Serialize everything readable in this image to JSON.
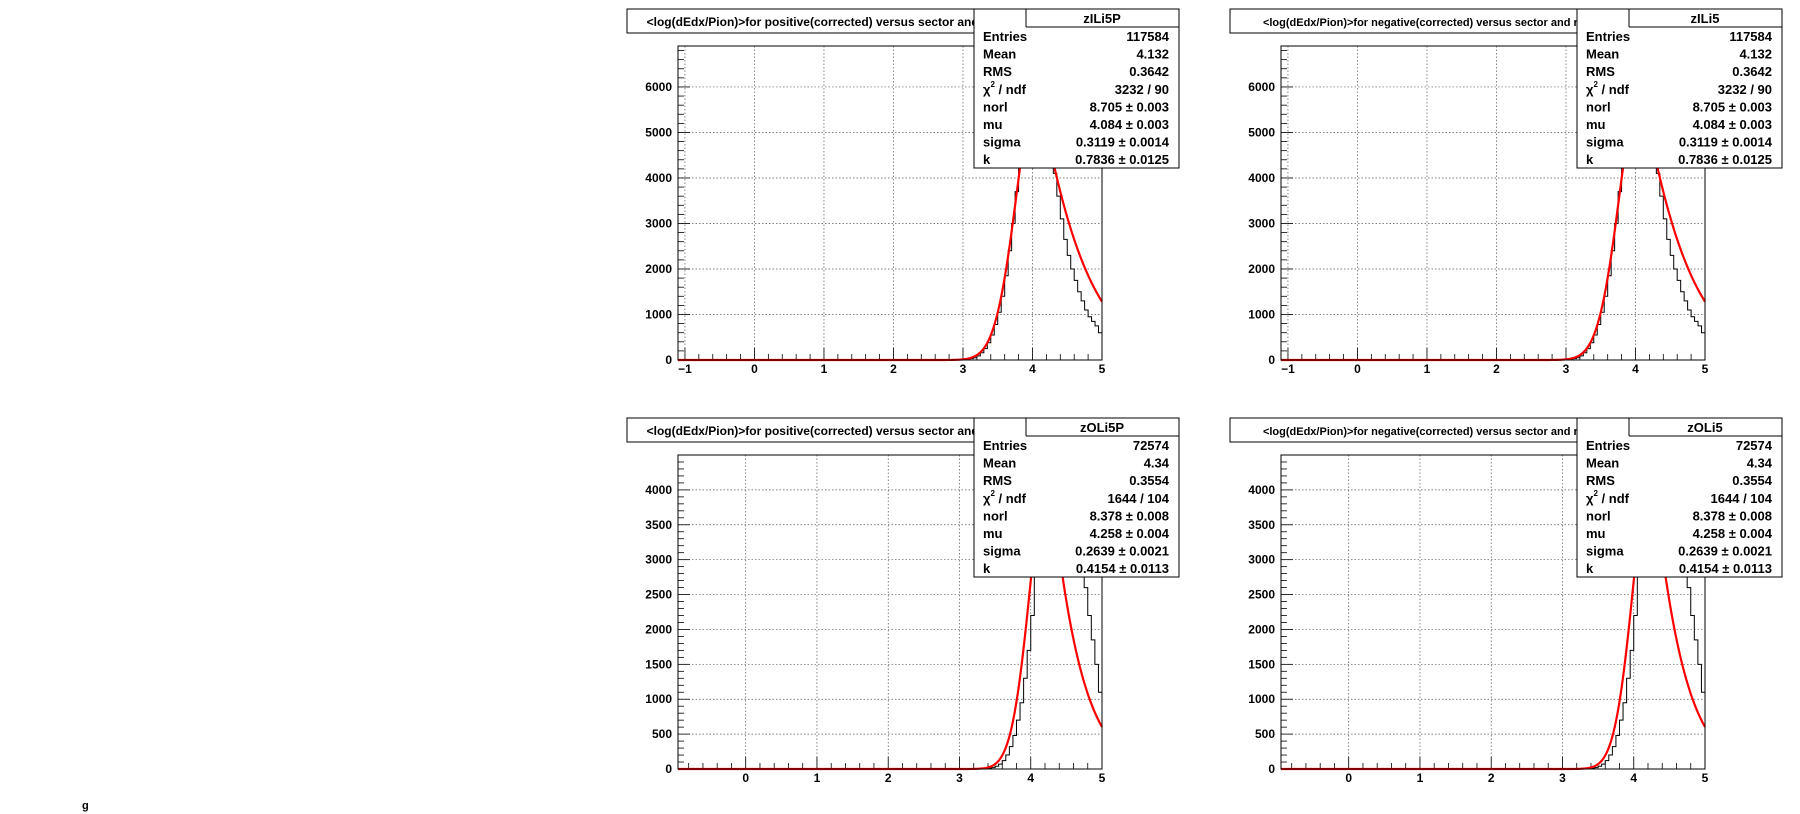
{
  "page": {
    "stray_mark": "g"
  },
  "chart_data": [
    {
      "type": "histogram",
      "name": "zILi5P",
      "title": "<log(dEdx/Pion)>for positive(corrected) versus sector and row",
      "xlim": [
        -1.1,
        5
      ],
      "ylim": [
        0,
        6900
      ],
      "xticks": [
        -1,
        0,
        1,
        2,
        3,
        4,
        5
      ],
      "xtick_labels": [
        "−1",
        "0",
        "1",
        "2",
        "3",
        "4",
        "5"
      ],
      "yticks": [
        0,
        1000,
        2000,
        3000,
        4000,
        5000,
        6000
      ],
      "ytick_labels": [
        "0",
        "1000",
        "2000",
        "3000",
        "4000",
        "5000",
        "6000"
      ],
      "yminor_step": 200,
      "xminor_step": 0.2,
      "grid": true,
      "stats": {
        "name": "zILi5P",
        "rows": [
          {
            "label": "Entries",
            "value": "117584"
          },
          {
            "label": "Mean",
            "value": "4.132"
          },
          {
            "label": "RMS",
            "value": "0.3642"
          },
          {
            "label": "chi2 / ndf",
            "value": "3232 / 90"
          },
          {
            "label": "norl",
            "value": "8.705 ± 0.003"
          },
          {
            "label": "mu",
            "value": "4.084 ± 0.003"
          },
          {
            "label": "sigma",
            "value": "0.3119 ± 0.0014"
          },
          {
            "label": "k",
            "value": "0.7836 ± 0.0125"
          }
        ]
      },
      "fit": {
        "norl": 8.705,
        "mu": 4.084,
        "sigma": 0.3119,
        "k": 0.7836,
        "color": "#ff0000"
      },
      "hist_bins": {
        "start": 3.05,
        "end": 5.0,
        "width": 0.05
      },
      "hist_values": [
        20,
        30,
        50,
        90,
        160,
        250,
        380,
        550,
        780,
        1050,
        1400,
        1850,
        2400,
        3000,
        3700,
        4500,
        5300,
        6100,
        6900,
        6900,
        6900,
        6900,
        6500,
        5700,
        4900,
        4100,
        3600,
        3100,
        2650,
        2300,
        2000,
        1750,
        1500,
        1300,
        1100,
        950,
        850,
        750,
        600
      ]
    },
    {
      "type": "histogram",
      "name": "zILi5",
      "title": "<log(dEdx/Pion)>for negative(corrected) versus sector and row",
      "xlim": [
        -1.1,
        5
      ],
      "ylim": [
        0,
        6900
      ],
      "xticks": [
        -1,
        0,
        1,
        2,
        3,
        4,
        5
      ],
      "xtick_labels": [
        "−1",
        "0",
        "1",
        "2",
        "3",
        "4",
        "5"
      ],
      "yticks": [
        0,
        1000,
        2000,
        3000,
        4000,
        5000,
        6000
      ],
      "ytick_labels": [
        "0",
        "1000",
        "2000",
        "3000",
        "4000",
        "5000",
        "6000"
      ],
      "yminor_step": 200,
      "xminor_step": 0.2,
      "grid": true,
      "stats": {
        "name": "zILi5",
        "rows": [
          {
            "label": "Entries",
            "value": "117584"
          },
          {
            "label": "Mean",
            "value": "4.132"
          },
          {
            "label": "RMS",
            "value": "0.3642"
          },
          {
            "label": "chi2 / ndf",
            "value": "3232 / 90"
          },
          {
            "label": "norl",
            "value": "8.705 ± 0.003"
          },
          {
            "label": "mu",
            "value": "4.084 ± 0.003"
          },
          {
            "label": "sigma",
            "value": "0.3119 ± 0.0014"
          },
          {
            "label": "k",
            "value": "0.7836 ± 0.0125"
          }
        ]
      },
      "fit": {
        "norl": 8.705,
        "mu": 4.084,
        "sigma": 0.3119,
        "k": 0.7836,
        "color": "#ff0000"
      },
      "hist_bins": {
        "start": 3.05,
        "end": 5.0,
        "width": 0.05
      },
      "hist_values": [
        20,
        30,
        50,
        90,
        160,
        250,
        380,
        550,
        780,
        1050,
        1400,
        1850,
        2400,
        3000,
        3700,
        4500,
        5300,
        6100,
        6900,
        6900,
        6900,
        6900,
        6500,
        5700,
        4900,
        4100,
        3600,
        3100,
        2650,
        2300,
        2000,
        1750,
        1500,
        1300,
        1100,
        950,
        850,
        750,
        600
      ]
    },
    {
      "type": "histogram",
      "name": "zOLi5P",
      "title": "<log(dEdx/Pion)>for positive(corrected) versus sector and row",
      "xlim": [
        -0.95,
        5
      ],
      "ylim": [
        0,
        4500
      ],
      "xticks": [
        0,
        1,
        2,
        3,
        4,
        5
      ],
      "xtick_labels": [
        "0",
        "1",
        "2",
        "3",
        "4",
        "5"
      ],
      "yticks": [
        0,
        500,
        1000,
        1500,
        2000,
        2500,
        3000,
        3500,
        4000
      ],
      "ytick_labels": [
        "0",
        "500",
        "1000",
        "1500",
        "2000",
        "2500",
        "3000",
        "3500",
        "4000"
      ],
      "yminor_step": 100,
      "xminor_step": 0.2,
      "grid": true,
      "stats": {
        "name": "zOLi5P",
        "rows": [
          {
            "label": "Entries",
            "value": "72574"
          },
          {
            "label": "Mean",
            "value": "4.34"
          },
          {
            "label": "RMS",
            "value": "0.3554"
          },
          {
            "label": "chi2 / ndf",
            "value": "1644 / 104"
          },
          {
            "label": "norl",
            "value": "8.378 ± 0.008"
          },
          {
            "label": "mu",
            "value": "4.258 ± 0.004"
          },
          {
            "label": "sigma",
            "value": "0.2639 ± 0.0021"
          },
          {
            "label": "k",
            "value": "0.4154 ± 0.0113"
          }
        ]
      },
      "fit": {
        "norl": 8.378,
        "mu": 4.258,
        "sigma": 0.2639,
        "k": 0.4154,
        "color": "#ff0000"
      },
      "hist_bins": {
        "start": 3.4,
        "end": 5.0,
        "width": 0.05
      },
      "hist_values": [
        10,
        20,
        40,
        70,
        120,
        200,
        320,
        480,
        700,
        950,
        1300,
        1700,
        2200,
        2800,
        3500,
        4300,
        4500,
        4500,
        4500,
        4500,
        4500,
        4500,
        4500,
        4500,
        4300,
        3700,
        3100,
        2600,
        2200,
        1850,
        1500,
        1100
      ]
    },
    {
      "type": "histogram",
      "name": "zOLi5",
      "title": "<log(dEdx/Pion)>for negative(corrected) versus sector and row",
      "xlim": [
        -0.95,
        5
      ],
      "ylim": [
        0,
        4500
      ],
      "xticks": [
        0,
        1,
        2,
        3,
        4,
        5
      ],
      "xtick_labels": [
        "0",
        "1",
        "2",
        "3",
        "4",
        "5"
      ],
      "yticks": [
        0,
        500,
        1000,
        1500,
        2000,
        2500,
        3000,
        3500,
        4000
      ],
      "ytick_labels": [
        "0",
        "500",
        "1000",
        "1500",
        "2000",
        "2500",
        "3000",
        "3500",
        "4000"
      ],
      "yminor_step": 100,
      "xminor_step": 0.2,
      "grid": true,
      "stats": {
        "name": "zOLi5",
        "rows": [
          {
            "label": "Entries",
            "value": "72574"
          },
          {
            "label": "Mean",
            "value": "4.34"
          },
          {
            "label": "RMS",
            "value": "0.3554"
          },
          {
            "label": "chi2 / ndf",
            "value": "1644 / 104"
          },
          {
            "label": "norl",
            "value": "8.378 ± 0.008"
          },
          {
            "label": "mu",
            "value": "4.258 ± 0.004"
          },
          {
            "label": "sigma",
            "value": "0.2639 ± 0.0021"
          },
          {
            "label": "k",
            "value": "0.4154 ± 0.0113"
          }
        ]
      },
      "fit": {
        "norl": 8.378,
        "mu": 4.258,
        "sigma": 0.2639,
        "k": 0.4154,
        "color": "#ff0000"
      },
      "hist_bins": {
        "start": 3.4,
        "end": 5.0,
        "width": 0.05
      },
      "hist_values": [
        10,
        20,
        40,
        70,
        120,
        200,
        320,
        480,
        700,
        950,
        1300,
        1700,
        2200,
        2800,
        3500,
        4300,
        4500,
        4500,
        4500,
        4500,
        4500,
        4500,
        4500,
        4500,
        4300,
        3700,
        3100,
        2600,
        2200,
        1850,
        1500,
        1100
      ]
    }
  ]
}
